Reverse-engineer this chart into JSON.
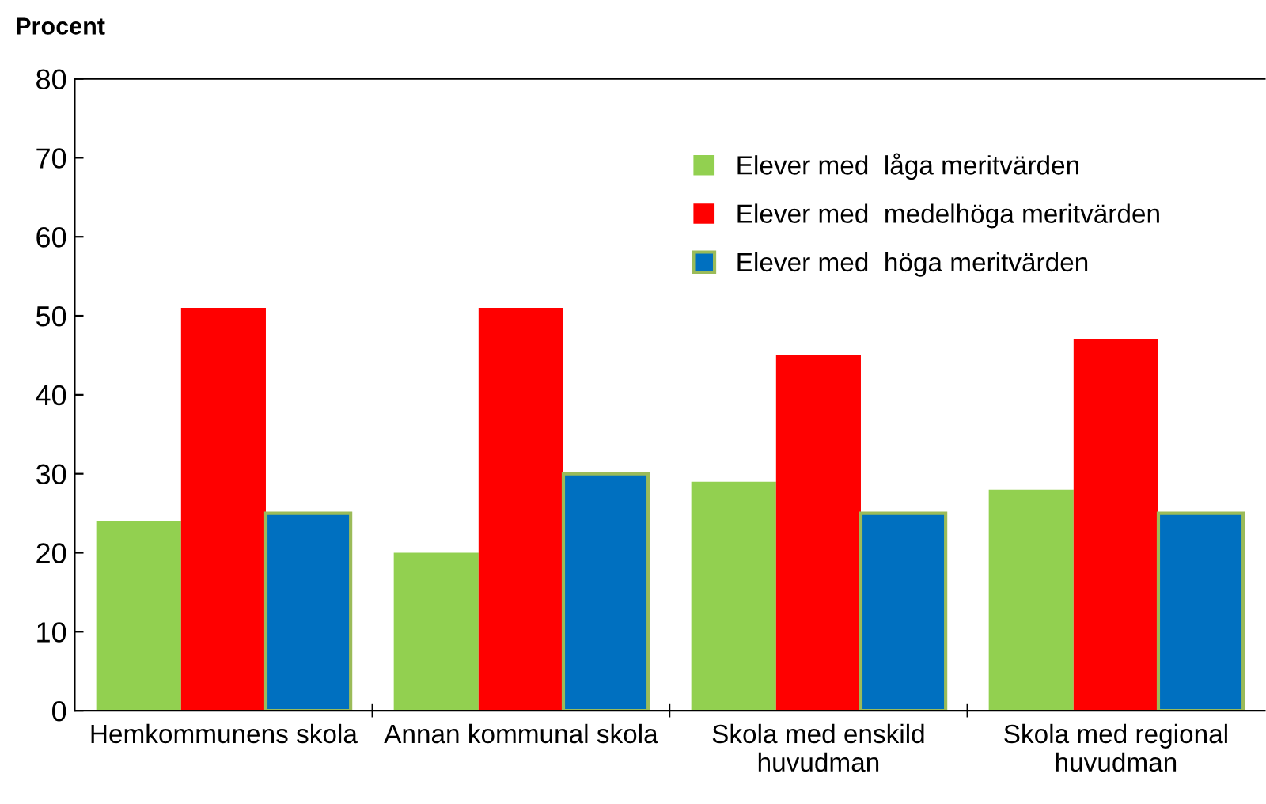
{
  "chart_data": {
    "type": "bar",
    "ylabel": "Procent",
    "categories": [
      "Hemkommunens skola",
      "Annan kommunal skola",
      "Skola med enskild\nhuvudman",
      "Skola med regional\nhuvudman"
    ],
    "series": [
      {
        "name": "Elever med  låga meritvärden",
        "color": "#92d050",
        "values": [
          24,
          20,
          29,
          28
        ]
      },
      {
        "name": "Elever med  medelhöga meritvärden",
        "color": "#ff0000",
        "values": [
          51,
          51,
          45,
          47
        ]
      },
      {
        "name": "Elever med  höga meritvärden",
        "color": "#0070c0",
        "values": [
          25,
          30,
          25,
          25
        ]
      }
    ],
    "ylim": [
      0,
      80
    ],
    "yticks": [
      0,
      10,
      20,
      30,
      40,
      50,
      60,
      70,
      80
    ],
    "grid": false,
    "legend": "top right"
  }
}
